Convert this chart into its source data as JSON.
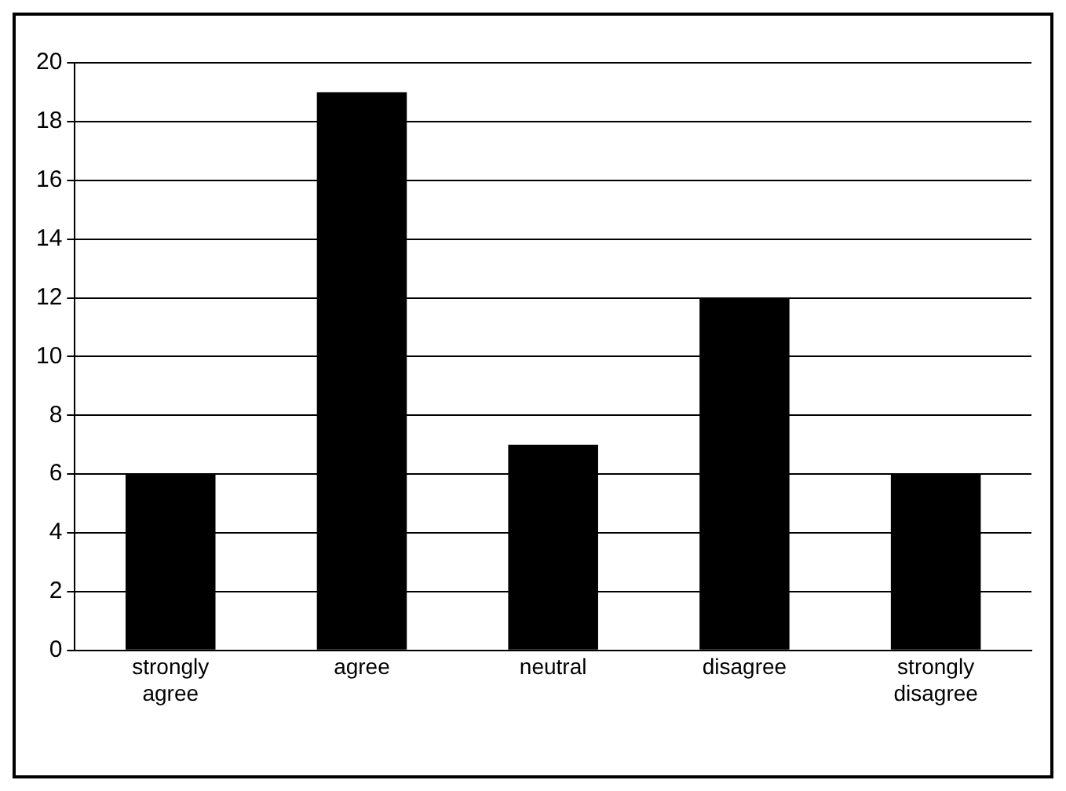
{
  "chart_data": {
    "type": "bar",
    "categories": [
      "strongly agree",
      "agree",
      "neutral",
      "disagree",
      "strongly disagree"
    ],
    "values": [
      6,
      19,
      7,
      12,
      6
    ],
    "color": "#000000",
    "ylim": [
      0,
      20
    ],
    "yticks": [
      0,
      2,
      4,
      6,
      8,
      10,
      12,
      14,
      16,
      18,
      20
    ],
    "grid": "y",
    "legend": false
  }
}
